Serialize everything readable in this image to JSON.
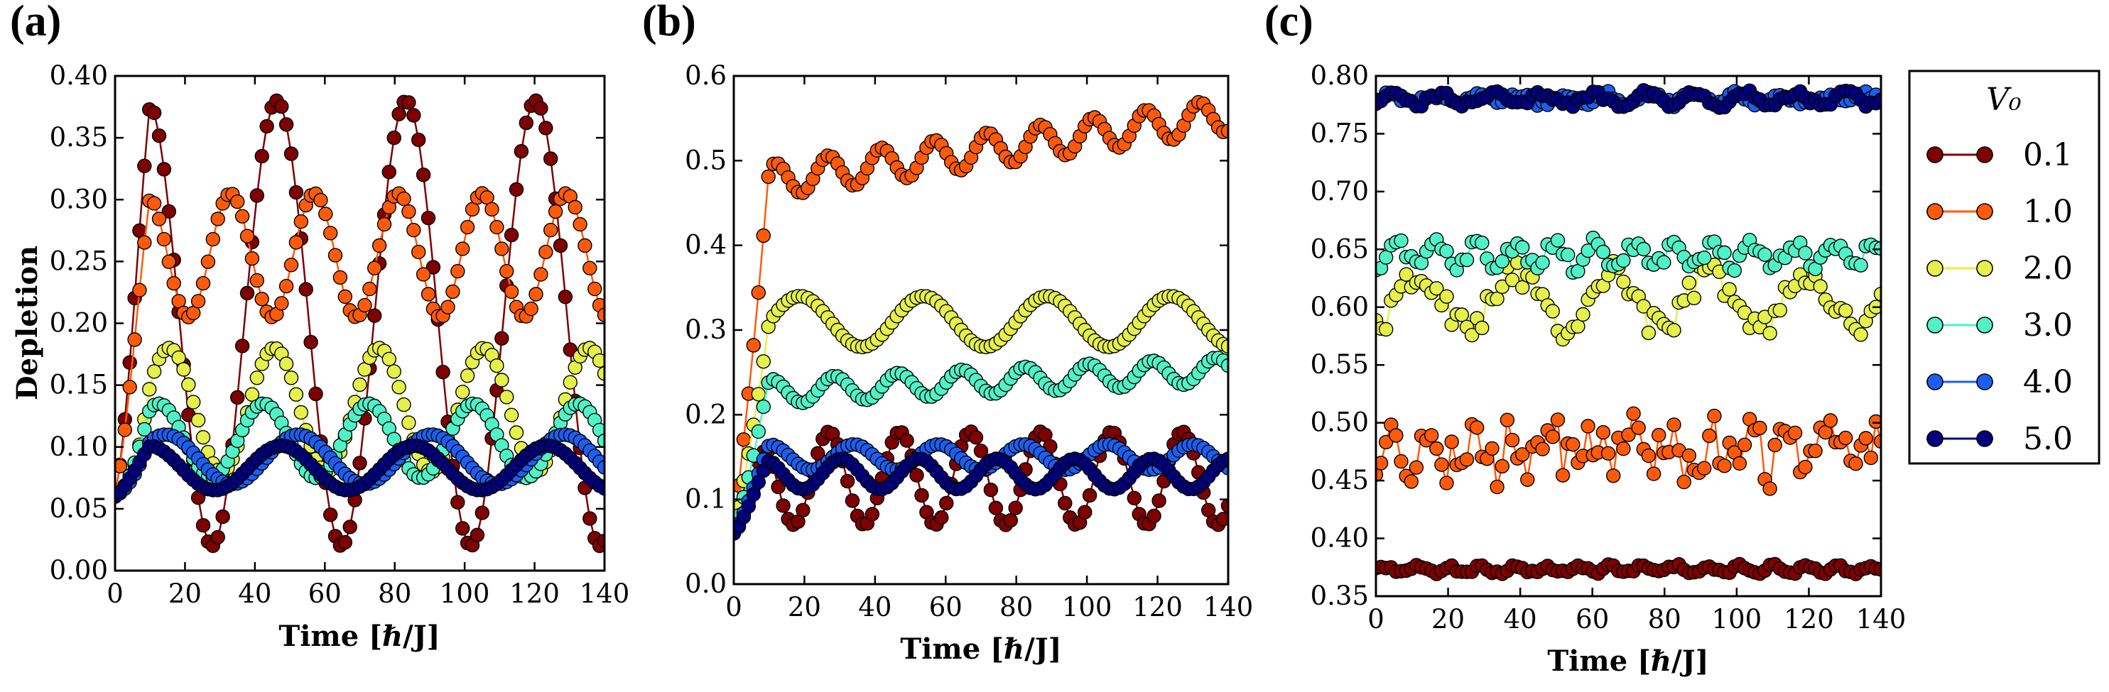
{
  "chart_data": [
    {
      "type": "line",
      "panel_label": "(a)",
      "xlabel": "Time [ℏ/J]",
      "ylabel": "Depletion",
      "xlim": [
        0,
        140
      ],
      "ylim": [
        0.0,
        0.4
      ],
      "xticks": [
        "0",
        "20",
        "40",
        "60",
        "80",
        "100",
        "120",
        "140"
      ],
      "yticks": [
        "0.00",
        "0.05",
        "0.10",
        "0.15",
        "0.20",
        "0.25",
        "0.30",
        "0.35",
        "0.40"
      ],
      "grid": false,
      "series": [
        {
          "name": "0.1",
          "model": {
            "base": 0.2,
            "amps": [
              [
                0.18,
                37
              ]
            ],
            "t0": 0
          }
        },
        {
          "name": "1.0",
          "model": {
            "base": 0.255,
            "amps": [
              [
                0.05,
                24
              ]
            ],
            "t0": 3
          }
        },
        {
          "name": "2.0",
          "model": {
            "base": 0.13,
            "amps": [
              [
                0.05,
                30
              ]
            ],
            "t0": 8
          }
        },
        {
          "name": "3.0",
          "model": {
            "base": 0.105,
            "amps": [
              [
                0.03,
                30
              ]
            ],
            "t0": 5
          }
        },
        {
          "name": "4.0",
          "model": {
            "base": 0.09,
            "amps": [
              [
                0.02,
                38
              ]
            ],
            "t0": 5
          }
        },
        {
          "name": "5.0",
          "model": {
            "base": 0.083,
            "amps": [
              [
                0.018,
                38
              ]
            ],
            "t0": 0
          }
        }
      ]
    },
    {
      "type": "line",
      "panel_label": "(b)",
      "xlabel": "Time [ℏ/J]",
      "ylabel": "",
      "xlim": [
        0,
        140
      ],
      "ylim": [
        0.0,
        0.6
      ],
      "xticks": [
        "0",
        "20",
        "40",
        "60",
        "80",
        "100",
        "120",
        "140"
      ],
      "yticks": [
        "0.0",
        "0.1",
        "0.2",
        "0.3",
        "0.4",
        "0.5",
        "0.6"
      ],
      "grid": false,
      "series": [
        {
          "name": "0.1",
          "model": {
            "base": 0.125,
            "amps": [
              [
                0.055,
                20
              ]
            ],
            "t0": 2
          }
        },
        {
          "name": "1.0",
          "model": {
            "base": 0.47,
            "amps": [
              [
                0.02,
                15
              ]
            ],
            "t0": 8,
            "trend": 0.0006
          }
        },
        {
          "name": "2.0",
          "model": {
            "base": 0.31,
            "amps": [
              [
                0.03,
                35
              ]
            ],
            "t0": 10
          }
        },
        {
          "name": "3.0",
          "model": {
            "base": 0.225,
            "amps": [
              [
                0.015,
                18
              ]
            ],
            "t0": 6,
            "trend": 0.0002
          }
        },
        {
          "name": "4.0",
          "model": {
            "base": 0.15,
            "amps": [
              [
                0.015,
                24
              ]
            ],
            "t0": 4
          }
        },
        {
          "name": "5.0",
          "model": {
            "base": 0.13,
            "amps": [
              [
                0.018,
                22
              ]
            ],
            "t0": 3
          }
        }
      ]
    },
    {
      "type": "line",
      "panel_label": "(c)",
      "xlabel": "Time [ℏ/J]",
      "ylabel": "",
      "xlim": [
        0,
        140
      ],
      "ylim": [
        0.35,
        0.8
      ],
      "xticks": [
        "0",
        "20",
        "40",
        "60",
        "80",
        "100",
        "120",
        "140"
      ],
      "yticks": [
        "0.35",
        "0.40",
        "0.45",
        "0.50",
        "0.55",
        "0.60",
        "0.65",
        "0.70",
        "0.75",
        "0.80"
      ],
      "grid": false,
      "series": [
        {
          "name": "0.1",
          "model": {
            "base": 0.373,
            "amps": [
              [
                0.003,
                9
              ]
            ],
            "t0": 0,
            "noise": 0.002
          }
        },
        {
          "name": "1.0",
          "model": {
            "base": 0.475,
            "amps": [
              [
                0.012,
                11
              ]
            ],
            "t0": 2,
            "noise": 0.022
          }
        },
        {
          "name": "2.0",
          "model": {
            "base": 0.605,
            "amps": [
              [
                0.025,
                27
              ]
            ],
            "t0": 5,
            "noise": 0.012
          }
        },
        {
          "name": "3.0",
          "model": {
            "base": 0.645,
            "amps": [
              [
                0.01,
                11
              ]
            ],
            "t0": 3,
            "noise": 0.006
          }
        },
        {
          "name": "4.0",
          "model": {
            "base": 0.78,
            "amps": [
              [
                0.004,
                12
              ]
            ],
            "t0": 1,
            "noise": 0.003
          }
        },
        {
          "name": "5.0",
          "model": {
            "base": 0.78,
            "amps": [
              [
                0.005,
                14
              ]
            ],
            "t0": 1,
            "noise": 0.003
          }
        }
      ]
    }
  ],
  "legend": {
    "title": "V₀",
    "placement": "right of panel (c)",
    "entries": [
      {
        "label": "0.1",
        "color": "#7f0000"
      },
      {
        "label": "1.0",
        "color": "#ff5a0a"
      },
      {
        "label": "2.0",
        "color": "#e5f04a"
      },
      {
        "label": "3.0",
        "color": "#4ff2c6"
      },
      {
        "label": "4.0",
        "color": "#1c5ff0"
      },
      {
        "label": "5.0",
        "color": "#00007f"
      }
    ]
  },
  "colors": {
    "0.1": "#7f0000",
    "1.0": "#ff5a0a",
    "2.0": "#e5f04a",
    "3.0": "#4ff2c6",
    "4.0": "#1c5ff0",
    "5.0": "#00007f"
  }
}
